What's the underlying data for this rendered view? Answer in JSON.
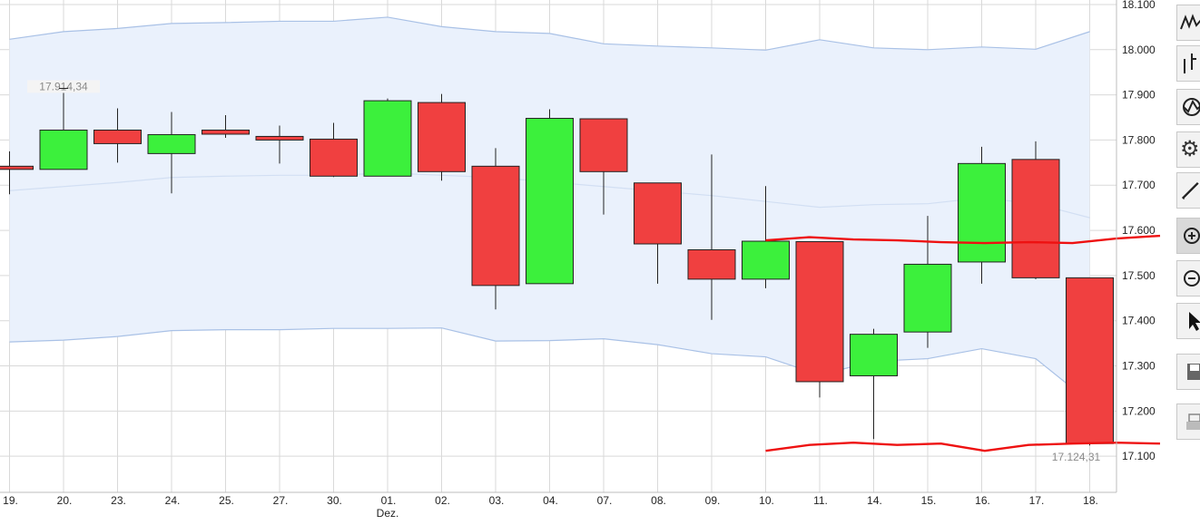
{
  "chart_data": {
    "type": "candlestick",
    "overlay": "bollinger-band",
    "categories": [
      "19.",
      "20.",
      "23.",
      "24.",
      "25.",
      "27.",
      "30.",
      "01.",
      "02.",
      "03.",
      "04.",
      "07.",
      "08.",
      "09.",
      "10.",
      "11.",
      "14.",
      "15.",
      "16.",
      "17.",
      "18."
    ],
    "month_label": "Dez.",
    "candles": [
      {
        "open": 17742,
        "high": 17775,
        "low": 17680,
        "close": 17735
      },
      {
        "open": 17735,
        "high": 17914,
        "low": 17735,
        "close": 17822
      },
      {
        "open": 17822,
        "high": 17870,
        "low": 17750,
        "close": 17792
      },
      {
        "open": 17770,
        "high": 17862,
        "low": 17682,
        "close": 17812
      },
      {
        "open": 17822,
        "high": 17855,
        "low": 17805,
        "close": 17813
      },
      {
        "open": 17808,
        "high": 17832,
        "low": 17748,
        "close": 17800
      },
      {
        "open": 17802,
        "high": 17838,
        "low": 17718,
        "close": 17720
      },
      {
        "open": 17720,
        "high": 17892,
        "low": 17720,
        "close": 17887
      },
      {
        "open": 17883,
        "high": 17902,
        "low": 17710,
        "close": 17730
      },
      {
        "open": 17742,
        "high": 17782,
        "low": 17425,
        "close": 17478
      },
      {
        "open": 17482,
        "high": 17868,
        "low": 17482,
        "close": 17848
      },
      {
        "open": 17847,
        "high": 17847,
        "low": 17635,
        "close": 17730
      },
      {
        "open": 17705,
        "high": 17705,
        "low": 17482,
        "close": 17570
      },
      {
        "open": 17557,
        "high": 17768,
        "low": 17402,
        "close": 17492
      },
      {
        "open": 17492,
        "high": 17698,
        "low": 17472,
        "close": 17576
      },
      {
        "open": 17575,
        "high": 17575,
        "low": 17230,
        "close": 17265
      },
      {
        "open": 17278,
        "high": 17382,
        "low": 17138,
        "close": 17370
      },
      {
        "open": 17375,
        "high": 17632,
        "low": 17340,
        "close": 17525
      },
      {
        "open": 17530,
        "high": 17785,
        "low": 17482,
        "close": 17748
      },
      {
        "open": 17757,
        "high": 17797,
        "low": 17492,
        "close": 17495
      },
      {
        "open": 17495,
        "high": 17495,
        "low": 17124,
        "close": 17128
      }
    ],
    "band_upper": [
      18023,
      18040,
      18047,
      18058,
      18060,
      18063,
      18063,
      18072,
      18051,
      18040,
      18036,
      18013,
      18008,
      18004,
      17999,
      18022,
      18004,
      18000,
      18006,
      18001,
      18040
    ],
    "band_middle": [
      17688,
      17697,
      17706,
      17717,
      17720,
      17722,
      17722,
      17727,
      17722,
      17717,
      17707,
      17697,
      17687,
      17677,
      17664,
      17651,
      17657,
      17659,
      17672,
      17659,
      17628
    ],
    "band_lower": [
      17353,
      17357,
      17365,
      17378,
      17380,
      17380,
      17383,
      17383,
      17384,
      17355,
      17356,
      17360,
      17347,
      17327,
      17320,
      17280,
      17310,
      17316,
      17338,
      17316,
      17220
    ],
    "ylim": [
      17020,
      18110
    ],
    "y_ticks": [
      17100,
      17200,
      17300,
      17400,
      17500,
      17600,
      17700,
      17800,
      17900,
      18000,
      18100
    ],
    "y_tick_labels": [
      "17.100",
      "17.200",
      "17.300",
      "17.400",
      "17.500",
      "17.600",
      "17.700",
      "17.800",
      "17.900",
      "18.000",
      "18.100"
    ],
    "annotations": {
      "high_value": 17914.34,
      "high_index": 1,
      "high_label": "17.914,34",
      "low_value": 17124.31,
      "low_index": 20,
      "low_label": "17.124,31"
    },
    "drawn_lines": [
      {
        "name": "resistance",
        "color": "#ee1111",
        "from_index": 14,
        "points": [
          17578,
          17585,
          17580,
          17578,
          17574,
          17572,
          17574,
          17572,
          17582,
          17588
        ]
      },
      {
        "name": "support",
        "color": "#ee1111",
        "from_index": 14,
        "points": [
          17112,
          17125,
          17130,
          17125,
          17128,
          17112,
          17125,
          17128,
          17130,
          17128
        ]
      }
    ],
    "colors": {
      "up": "#3cf03c",
      "down": "#f04040",
      "band_fill": "#eaf1fc",
      "band_line": "#a9c1e6",
      "grid": "#d9d9d9"
    },
    "grid": true
  },
  "toolbar": {
    "tools": [
      {
        "name": "line-chart-tool",
        "icon": "line-chart-icon"
      },
      {
        "name": "ohlc-chart-tool",
        "icon": "ohlc-chart-icon"
      },
      {
        "name": "indicator-tool",
        "icon": "indicator-icon"
      },
      {
        "name": "settings-tool",
        "icon": "gear-icon"
      },
      {
        "name": "draw-tool",
        "icon": "pencil-icon"
      },
      {
        "name": "zoom-in-tool",
        "icon": "zoom-in-icon",
        "active": true
      },
      {
        "name": "zoom-out-tool",
        "icon": "zoom-out-icon"
      },
      {
        "name": "pointer-tool",
        "icon": "cursor-icon"
      },
      {
        "name": "save-tool",
        "icon": "save-icon"
      },
      {
        "name": "print-tool",
        "icon": "print-icon"
      }
    ]
  }
}
